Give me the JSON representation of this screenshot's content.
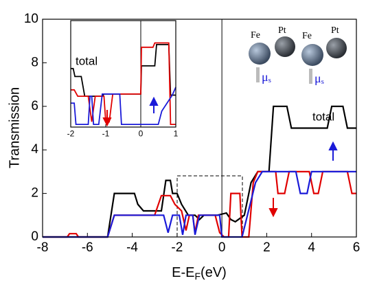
{
  "chart_data": [
    {
      "type": "line",
      "xlabel": [
        "E-E",
        "F",
        "(eV)"
      ],
      "ylabel": "Transmission",
      "xlim": [
        -8,
        6
      ],
      "ylim": [
        0,
        10
      ],
      "xticks": [
        -8,
        -6,
        -4,
        -2,
        0,
        2,
        4,
        6
      ],
      "yticks": [
        0,
        2,
        4,
        6,
        8,
        10
      ],
      "series": [
        {
          "name": "total",
          "color": "#000000",
          "x": [
            -8,
            -5.1,
            -4.8,
            -3.9,
            -3.75,
            -3.5,
            -2.7,
            -2.5,
            -2.3,
            -2.2,
            -2,
            -1.8,
            -1.5,
            -1.2,
            -1,
            -0.8,
            -0.2,
            0.2,
            0.4,
            0.6,
            1,
            1.3,
            1.6,
            2.1,
            2.3,
            2.9,
            3.1,
            4.7,
            4.9,
            5.4,
            5.6,
            6
          ],
          "values": [
            0,
            0,
            2,
            2,
            1.5,
            1.2,
            1.2,
            2.6,
            2.6,
            2,
            2,
            1.5,
            1,
            1,
            0.8,
            1,
            1,
            1.1,
            0.8,
            0.7,
            1,
            2.5,
            3,
            3,
            6,
            6,
            5,
            5,
            6,
            6,
            5,
            5
          ]
        },
        {
          "color": "#e00000",
          "x": [
            -8,
            -6.9,
            -6.8,
            -6.5,
            -6.4,
            -5.1,
            -4.8,
            -3,
            -2.7,
            -2.3,
            -2.1,
            -1.8,
            -1.6,
            -1.45,
            -1.3,
            -1.2,
            -1.05,
            -0.3,
            -0.1,
            0.1,
            0.3,
            0.4,
            0.8,
            0.9,
            1.2,
            1.4,
            1.6,
            2.4,
            2.5,
            2.8,
            3,
            3.9,
            4.1,
            4.3,
            4.5,
            5.6,
            5.8,
            6
          ],
          "values": [
            0,
            0,
            0.15,
            0.15,
            0,
            0,
            1,
            1,
            1.9,
            1.9,
            1.5,
            1.2,
            0.3,
            1,
            1,
            0.2,
            1,
            1,
            0.2,
            0,
            0,
            2,
            2,
            0,
            0,
            2.5,
            3,
            3,
            2,
            2,
            3,
            3,
            2,
            2,
            3,
            3,
            2,
            2
          ]
        },
        {
          "color": "#1a1ad8",
          "x": [
            -8,
            -5.1,
            -4.8,
            -2.6,
            -2.4,
            -2.2,
            -1.9,
            -1.75,
            -1.6,
            -1.3,
            -1.2,
            -1.0,
            -0.1,
            0,
            0.9,
            1.5,
            1.8,
            3.3,
            3.5,
            3.8,
            4,
            6
          ],
          "values": [
            0,
            0,
            1,
            1,
            0.2,
            1,
            1,
            0.1,
            1,
            1,
            0.1,
            1,
            1,
            0,
            0,
            2.5,
            3,
            3,
            2,
            2,
            3,
            3
          ]
        }
      ]
    },
    {
      "type": "line",
      "xlim": [
        -2,
        1
      ],
      "ylim": [
        0,
        2
      ],
      "xticks": [
        -2,
        -1,
        0,
        1
      ],
      "series": [
        {
          "name": "total",
          "color": "#000000",
          "x": [
            -2,
            -1.93,
            -1.88,
            -1.7,
            -1.6,
            -1.1,
            -1.05,
            0,
            0.02,
            0.4,
            0.45,
            0.8,
            0.85,
            1
          ],
          "values": [
            1.1,
            1.1,
            0.95,
            0.95,
            0.58,
            0.58,
            0.62,
            0.62,
            1.15,
            1.15,
            1.55,
            1.55,
            0.6,
            0.6
          ]
        },
        {
          "color": "#e00000",
          "x": [
            -2,
            -1.9,
            -1.8,
            -1.5,
            -1.4,
            -1.3,
            -1.05,
            -1,
            -0.9,
            -0.8,
            0,
            0.02,
            0.35,
            0.4,
            0.8,
            0.85,
            1
          ],
          "values": [
            0.7,
            0.7,
            0.58,
            0.58,
            0.1,
            0.58,
            0.58,
            0.1,
            0.1,
            0.62,
            0.62,
            1.5,
            1.5,
            1.58,
            1.58,
            0.05,
            0.05
          ]
        },
        {
          "color": "#1a1ad8",
          "x": [
            -2,
            -1.9,
            -1.85,
            -1.5,
            -1.45,
            -1.4,
            -1.35,
            -1.2,
            -1.1,
            -0.6,
            -0.55,
            0.5,
            0.6,
            0.9,
            1
          ],
          "values": [
            0.45,
            0.45,
            0.05,
            0.05,
            0.58,
            0.58,
            0.05,
            0.05,
            0.62,
            0.62,
            0.05,
            0.05,
            0.3,
            0.6,
            0.75
          ]
        }
      ]
    }
  ],
  "annotations": {
    "atoms": [
      "Fe",
      "Pt",
      "Fe",
      "Pt"
    ],
    "moments": [
      [
        "μ",
        "s"
      ],
      [
        "μ",
        "s"
      ]
    ]
  }
}
